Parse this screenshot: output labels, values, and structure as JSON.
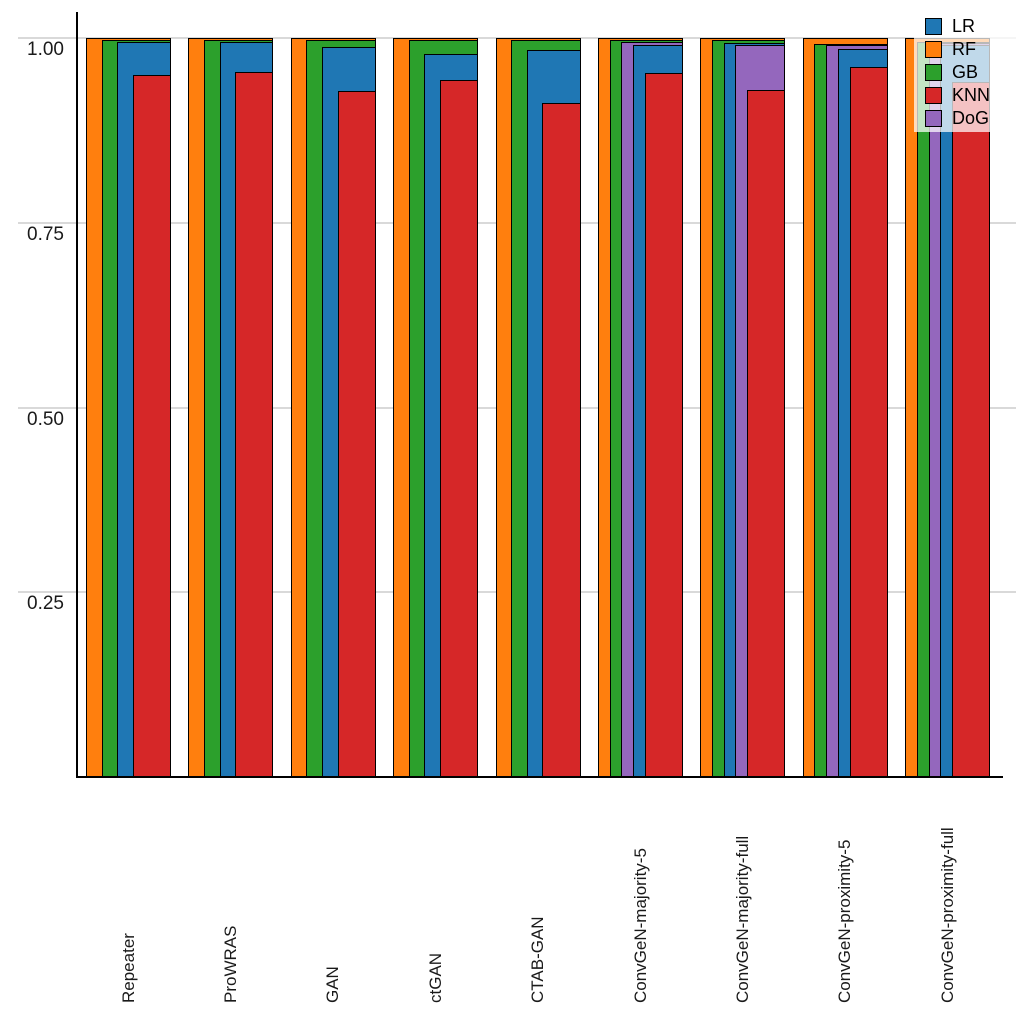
{
  "chart_data": {
    "type": "bar",
    "variant": "overlaid-bars-descending-width",
    "title": "",
    "xlabel": "",
    "ylabel": "",
    "ylim": [
      0,
      1.05
    ],
    "grid": "horizontal",
    "yticks": [
      {
        "value": 1.0,
        "label": "1.00"
      },
      {
        "value": 0.75,
        "label": "0.75"
      },
      {
        "value": 0.5,
        "label": "0.50"
      },
      {
        "value": 0.25,
        "label": "0.25"
      }
    ],
    "legend": {
      "position": "top-right",
      "entries": [
        "LR",
        "RF",
        "GB",
        "KNN",
        "DoG"
      ]
    },
    "series_colors": {
      "LR": "#1f77b4",
      "RF": "#ff7f0e",
      "GB": "#2ca02c",
      "KNN": "#d62728",
      "DoG": "#9467bd"
    },
    "categories": [
      "Repeater",
      "ProWRAS",
      "GAN",
      "ctGAN",
      "CTAB-GAN",
      "ConvGeN-majority-5",
      "ConvGeN-majority-full",
      "ConvGeN-proximity-5",
      "ConvGeN-proximity-full"
    ],
    "groups": [
      {
        "category": "Repeater",
        "layers": [
          {
            "series": "RF",
            "value": 1.0
          },
          {
            "series": "GB",
            "value": 0.997
          },
          {
            "series": "LR",
            "value": 0.994
          },
          {
            "series": "KNN",
            "value": 0.95
          }
        ]
      },
      {
        "category": "ProWRAS",
        "layers": [
          {
            "series": "RF",
            "value": 1.0
          },
          {
            "series": "GB",
            "value": 0.997
          },
          {
            "series": "LR",
            "value": 0.994
          },
          {
            "series": "KNN",
            "value": 0.954
          }
        ]
      },
      {
        "category": "GAN",
        "layers": [
          {
            "series": "RF",
            "value": 1.0
          },
          {
            "series": "GB",
            "value": 0.997
          },
          {
            "series": "LR",
            "value": 0.988
          },
          {
            "series": "KNN",
            "value": 0.928
          }
        ]
      },
      {
        "category": "ctGAN",
        "layers": [
          {
            "series": "RF",
            "value": 1.0
          },
          {
            "series": "GB",
            "value": 0.997
          },
          {
            "series": "LR",
            "value": 0.979
          },
          {
            "series": "KNN",
            "value": 0.943
          }
        ]
      },
      {
        "category": "CTAB-GAN",
        "layers": [
          {
            "series": "RF",
            "value": 1.0
          },
          {
            "series": "GB",
            "value": 0.997
          },
          {
            "series": "LR",
            "value": 0.984
          },
          {
            "series": "KNN",
            "value": 0.912
          }
        ]
      },
      {
        "category": "ConvGeN-majority-5",
        "layers": [
          {
            "series": "RF",
            "value": 1.0
          },
          {
            "series": "GB",
            "value": 0.997
          },
          {
            "series": "DoG",
            "value": 0.995
          },
          {
            "series": "LR",
            "value": 0.99
          },
          {
            "series": "KNN",
            "value": 0.953
          }
        ]
      },
      {
        "category": "ConvGeN-majority-full",
        "layers": [
          {
            "series": "RF",
            "value": 1.0
          },
          {
            "series": "GB",
            "value": 0.997
          },
          {
            "series": "LR",
            "value": 0.993
          },
          {
            "series": "DoG",
            "value": 0.991
          },
          {
            "series": "KNN",
            "value": 0.929
          }
        ]
      },
      {
        "category": "ConvGeN-proximity-5",
        "layers": [
          {
            "series": "RF",
            "value": 1.0
          },
          {
            "series": "GB",
            "value": 0.992
          },
          {
            "series": "DoG",
            "value": 0.99
          },
          {
            "series": "LR",
            "value": 0.985
          },
          {
            "series": "KNN",
            "value": 0.961
          }
        ]
      },
      {
        "category": "ConvGeN-proximity-full",
        "layers": [
          {
            "series": "RF",
            "value": 1.0
          },
          {
            "series": "GB",
            "value": 0.995
          },
          {
            "series": "DoG",
            "value": 0.993
          },
          {
            "series": "LR",
            "value": 0.99
          },
          {
            "series": "KNN",
            "value": 0.941
          }
        ]
      }
    ]
  }
}
